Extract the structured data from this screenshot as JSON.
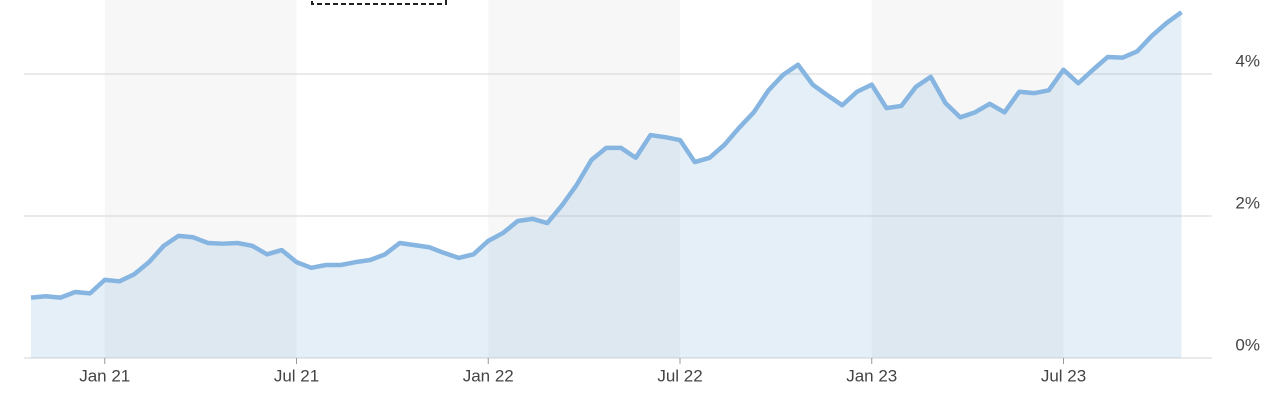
{
  "chart_data": {
    "type": "area",
    "categories": [
      null,
      null,
      null,
      null,
      null,
      "Jan 21",
      null,
      null,
      null,
      null,
      null,
      null,
      null,
      null,
      null,
      null,
      null,
      null,
      "Jul 21",
      null,
      null,
      null,
      null,
      null,
      null,
      null,
      null,
      null,
      null,
      null,
      null,
      "Jan 22",
      null,
      null,
      null,
      null,
      null,
      null,
      null,
      null,
      null,
      null,
      null,
      null,
      "Jul 22",
      null,
      null,
      null,
      null,
      null,
      null,
      null,
      null,
      null,
      null,
      null,
      null,
      "Jan 23",
      null,
      null,
      null,
      null,
      null,
      null,
      null,
      null,
      null,
      null,
      null,
      null,
      "Jul 23",
      null,
      null,
      null,
      null,
      null,
      null,
      null,
      null
    ],
    "values": [
      0.85,
      0.87,
      0.85,
      0.93,
      0.91,
      1.1,
      1.08,
      1.18,
      1.35,
      1.58,
      1.72,
      1.7,
      1.62,
      1.61,
      1.62,
      1.58,
      1.46,
      1.52,
      1.35,
      1.27,
      1.31,
      1.31,
      1.35,
      1.38,
      1.46,
      1.62,
      1.59,
      1.56,
      1.48,
      1.41,
      1.46,
      1.65,
      1.76,
      1.93,
      1.96,
      1.9,
      2.15,
      2.44,
      2.79,
      2.96,
      2.96,
      2.82,
      3.14,
      3.11,
      3.07,
      2.76,
      2.82,
      3.0,
      3.24,
      3.46,
      3.77,
      3.99,
      4.13,
      3.85,
      3.7,
      3.56,
      3.75,
      3.85,
      3.52,
      3.55,
      3.82,
      3.96,
      3.59,
      3.39,
      3.46,
      3.58,
      3.46,
      3.75,
      3.73,
      3.77,
      4.06,
      3.87,
      4.06,
      4.24,
      4.23,
      4.32,
      4.54,
      4.72,
      4.87
    ],
    "color": "#85b5e0",
    "ylim": [
      0,
      5
    ],
    "yticks": [
      {
        "value": 0,
        "label": "0%"
      },
      {
        "value": 2,
        "label": "2%"
      },
      {
        "value": 4,
        "label": "4%"
      }
    ],
    "grid": true
  }
}
